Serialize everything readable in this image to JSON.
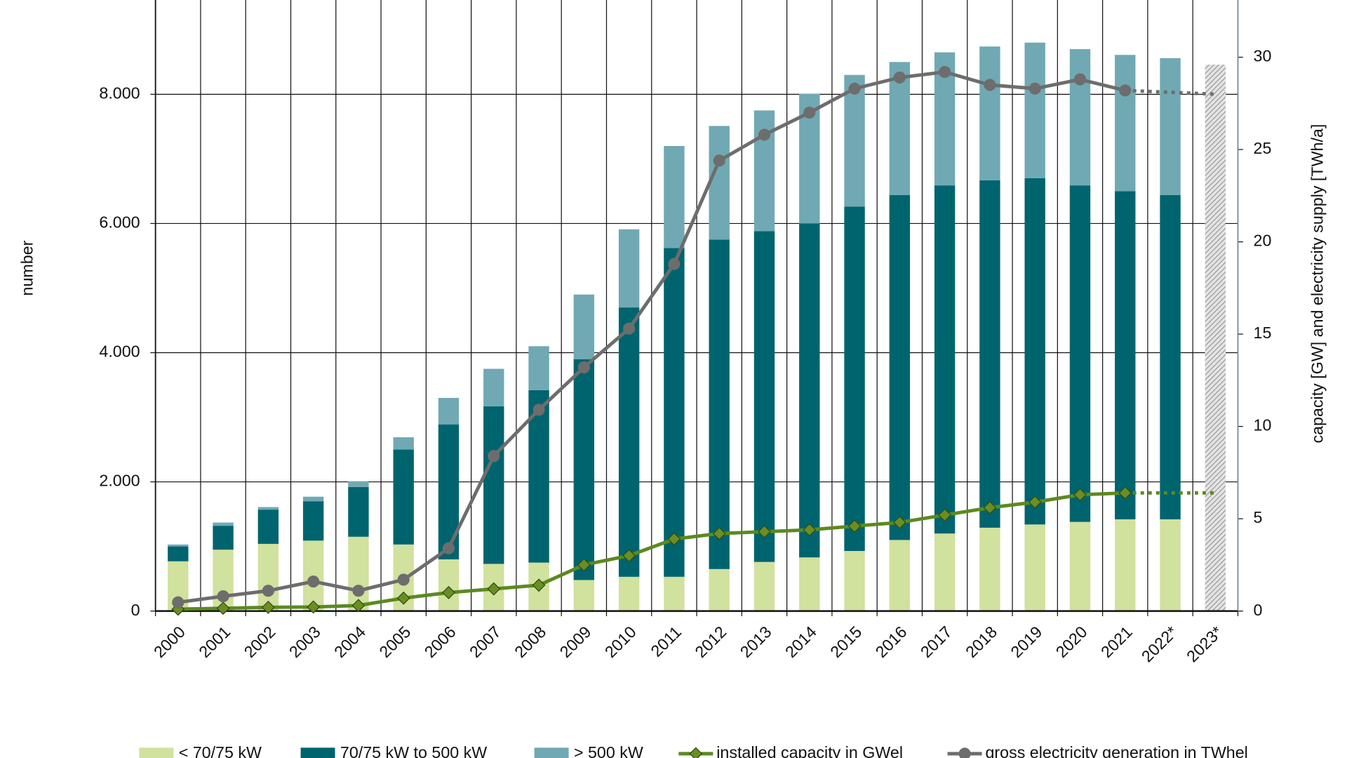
{
  "chart_data": {
    "type": "bar",
    "categories": [
      "2000",
      "2001",
      "2002",
      "2003",
      "2004",
      "2005",
      "2006",
      "2007",
      "2008",
      "2009",
      "2010",
      "2011",
      "2012",
      "2013",
      "2014",
      "2015",
      "2016",
      "2017",
      "2018",
      "2019",
      "2020",
      "2021",
      "2022*",
      "2023*"
    ],
    "ylabel": "number",
    "y2label": "capacity [GW] and electricity supply [TWh/a]",
    "ylim": [
      0,
      9460
    ],
    "yticks": [
      0,
      {
        "value": 2000,
        "label": "2.000"
      },
      {
        "value": 4000,
        "label": "4.000"
      },
      {
        "value": 6000,
        "label": "6.000"
      },
      {
        "value": 8000,
        "label": "8.000"
      }
    ],
    "y2lim": [
      0,
      33.1
    ],
    "y2ticks": [
      0,
      5,
      10,
      15,
      20,
      25,
      30
    ],
    "grid": true,
    "legend": "bottom",
    "series": [
      {
        "name": "< 70/75 kW",
        "color": "#d1e19e",
        "values": [
          770,
          950,
          1040,
          1090,
          1150,
          1030,
          800,
          730,
          750,
          480,
          530,
          530,
          650,
          760,
          830,
          930,
          1100,
          1200,
          1290,
          1340,
          1380,
          1420,
          1420,
          null
        ]
      },
      {
        "name": "70/75 kW to 500 kW",
        "color": "#00646e",
        "values": [
          230,
          370,
          530,
          610,
          770,
          1470,
          2090,
          2440,
          2670,
          3420,
          4170,
          5090,
          5100,
          5120,
          5170,
          5330,
          5340,
          5390,
          5380,
          5360,
          5210,
          5080,
          5020,
          null
        ]
      },
      {
        "name": "> 500 kW",
        "color": "#70a9b3",
        "values": [
          30,
          50,
          40,
          70,
          90,
          190,
          410,
          580,
          680,
          1000,
          1210,
          1580,
          1760,
          1870,
          2010,
          2040,
          2060,
          2060,
          2070,
          2100,
          2110,
          2110,
          2120,
          null
        ]
      },
      {
        "name": "installed capacity in GWel",
        "type": "line",
        "axis": "y2",
        "color": "#5b8a1f",
        "marker": "diamond",
        "dotted_from": "2021",
        "values": [
          0.1,
          0.15,
          0.2,
          0.22,
          0.3,
          0.7,
          1.0,
          1.2,
          1.4,
          2.5,
          3.0,
          3.9,
          4.2,
          4.3,
          4.4,
          4.6,
          4.8,
          5.2,
          5.6,
          5.9,
          6.3,
          6.4,
          6.4,
          6.4
        ]
      },
      {
        "name": "gross electricity generation in TWhel",
        "type": "line",
        "axis": "y2",
        "color": "#6d6d6d",
        "marker": "circle",
        "dotted_from": "2021",
        "values": [
          0.47,
          0.8,
          1.1,
          1.6,
          1.1,
          1.7,
          3.4,
          8.4,
          10.9,
          13.2,
          15.3,
          18.8,
          24.4,
          25.8,
          27.0,
          28.3,
          28.9,
          29.2,
          28.5,
          28.3,
          28.8,
          28.2,
          28.1,
          28.0
        ]
      }
    ],
    "hatched_values": [
      null,
      null,
      null,
      null,
      null,
      null,
      null,
      null,
      null,
      null,
      null,
      null,
      null,
      null,
      null,
      null,
      null,
      null,
      null,
      null,
      null,
      null,
      null,
      8460
    ]
  }
}
